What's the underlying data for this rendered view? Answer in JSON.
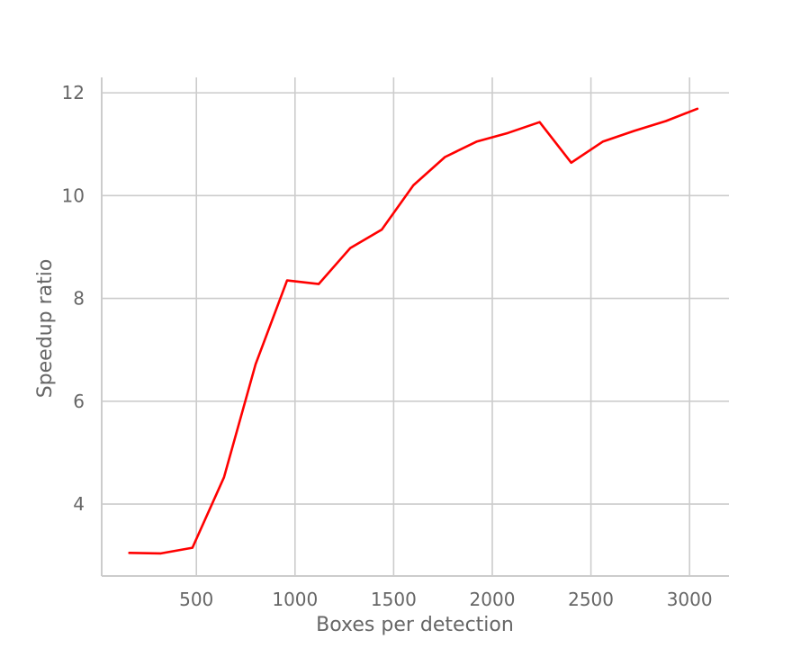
{
  "chart_data": {
    "type": "line",
    "title": "",
    "xlabel": "Boxes per detection",
    "ylabel": "Speedup ratio",
    "xlim": [
      20,
      3200
    ],
    "ylim": [
      2.6,
      12.3
    ],
    "xticks": [
      500,
      1000,
      1500,
      2000,
      2500,
      3000
    ],
    "yticks": [
      4,
      6,
      8,
      10,
      12
    ],
    "grid": true,
    "legend": "none",
    "series": [
      {
        "color": "#ff0000",
        "points": [
          [
            160,
            3.05
          ],
          [
            320,
            3.04
          ],
          [
            480,
            3.15
          ],
          [
            640,
            4.52
          ],
          [
            800,
            6.72
          ],
          [
            960,
            8.35
          ],
          [
            1120,
            8.28
          ],
          [
            1280,
            8.98
          ],
          [
            1440,
            9.34
          ],
          [
            1600,
            10.2
          ],
          [
            1760,
            10.75
          ],
          [
            1920,
            11.05
          ],
          [
            2080,
            11.22
          ],
          [
            2240,
            11.43
          ],
          [
            2400,
            10.64
          ],
          [
            2560,
            11.05
          ],
          [
            2720,
            11.26
          ],
          [
            2880,
            11.45
          ],
          [
            3040,
            11.69
          ]
        ]
      }
    ]
  }
}
